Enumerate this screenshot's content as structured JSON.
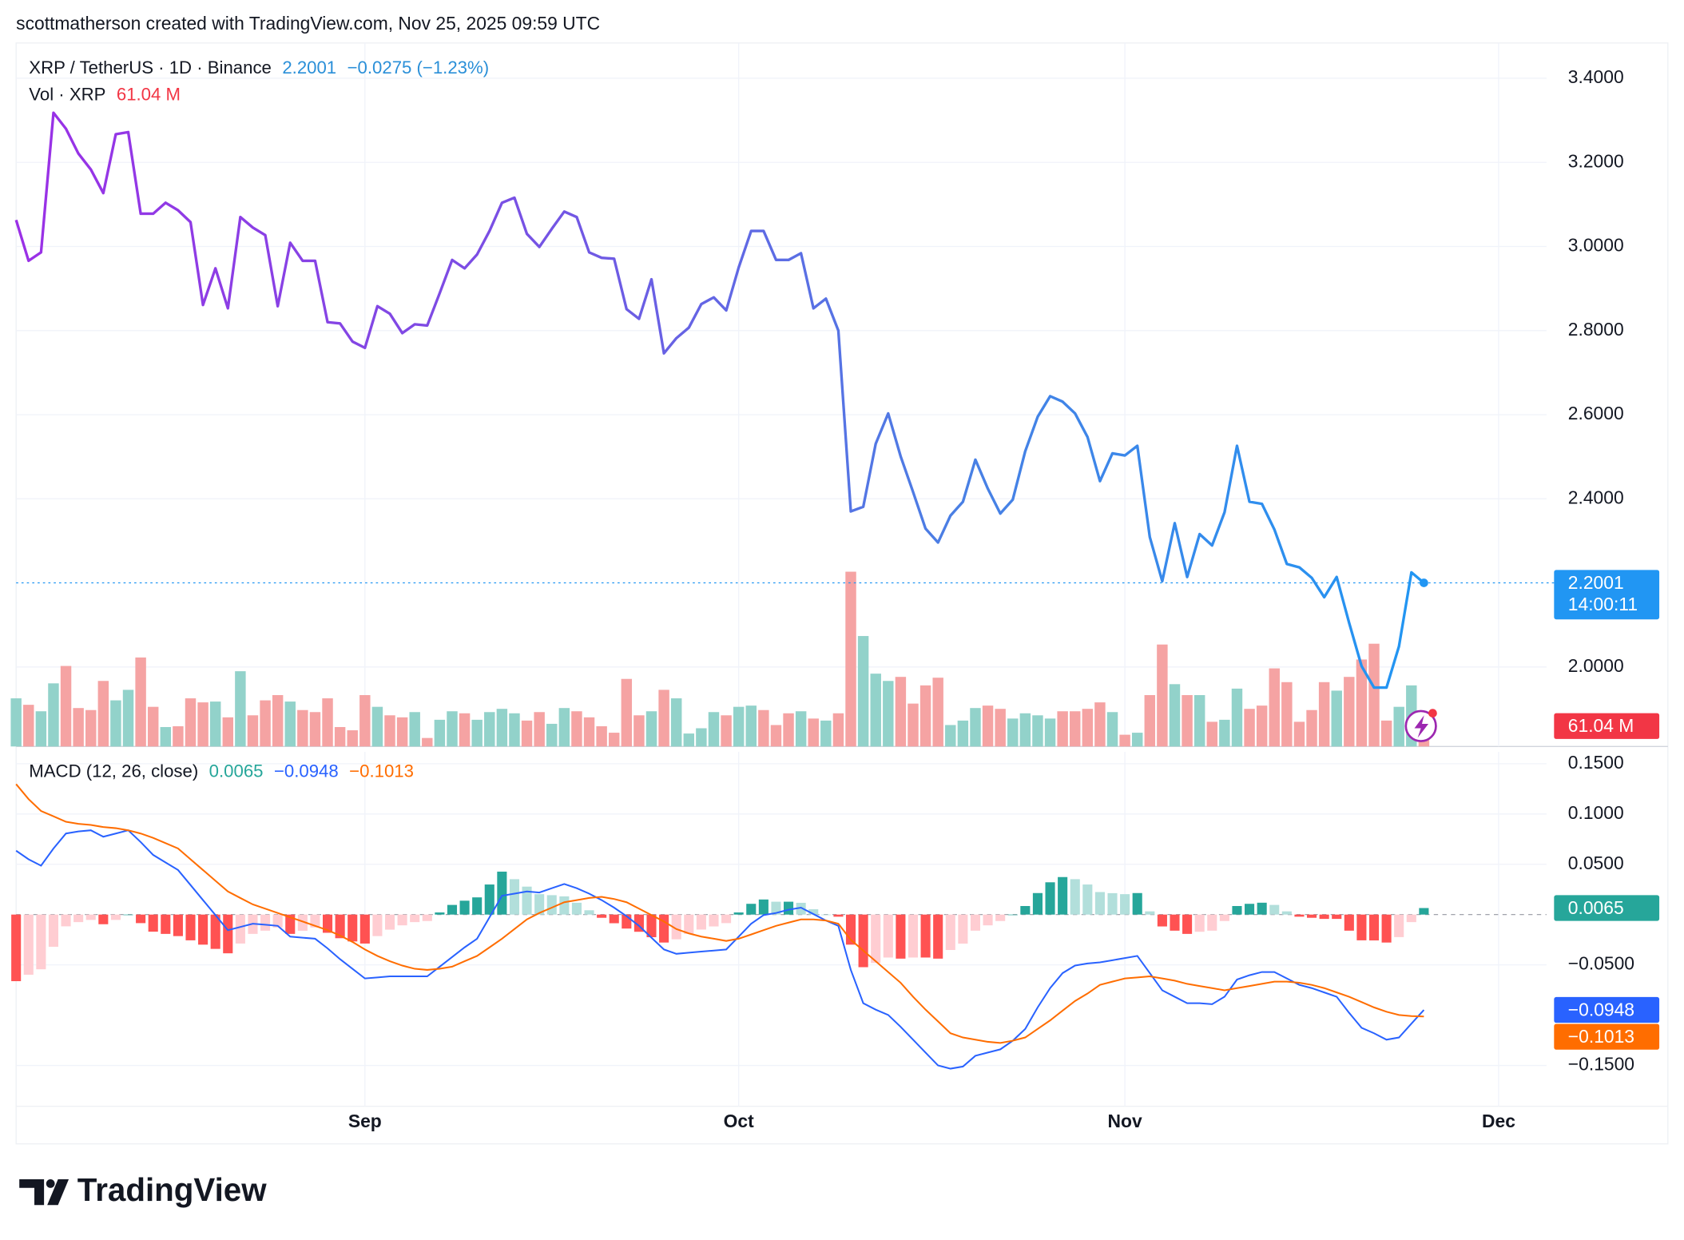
{
  "header": "scottmatherson created with TradingView.com, Nov 25, 2025 09:59 UTC",
  "footer_logo": "TradingView",
  "chart_data": [
    {
      "type": "line",
      "title": "XRP / TetherUS · 1D · Binance",
      "change_label": "−0.0275 (−1.23%)",
      "countdown": "14:00:11",
      "categories": [
        null,
        null,
        null,
        null,
        null,
        null,
        null,
        null,
        null,
        null,
        null,
        null,
        null,
        null,
        null,
        null,
        null,
        null,
        null,
        null,
        null,
        null,
        null,
        null,
        null,
        null,
        null,
        null,
        "Sep",
        null,
        null,
        null,
        null,
        null,
        null,
        null,
        null,
        null,
        null,
        null,
        null,
        null,
        null,
        null,
        null,
        null,
        null,
        null,
        null,
        null,
        null,
        null,
        null,
        null,
        null,
        null,
        null,
        null,
        "Oct",
        null,
        null,
        null,
        null,
        null,
        null,
        null,
        null,
        null,
        null,
        null,
        null,
        null,
        null,
        null,
        null,
        null,
        null,
        null,
        null,
        null,
        null,
        null,
        null,
        null,
        null,
        null,
        null,
        null,
        null,
        "Nov",
        null,
        null,
        null,
        null,
        null,
        null,
        null,
        null,
        null,
        null,
        null,
        null,
        null,
        null,
        null,
        null,
        null,
        null,
        null,
        null,
        null,
        null,
        null,
        null,
        null,
        null,
        null,
        null,
        null,
        "Dec",
        null,
        null,
        null
      ],
      "series": [
        {
          "colors": [
            "#9b30e6",
            "#7b4ee4",
            "#4a7fe4",
            "#2196f3"
          ],
          "values": [
            3.063,
            2.966,
            2.986,
            3.318,
            3.28,
            3.221,
            3.183,
            3.127,
            3.267,
            3.272,
            3.078,
            3.078,
            3.104,
            3.086,
            3.058,
            2.861,
            2.948,
            2.853,
            3.07,
            3.045,
            3.027,
            2.858,
            3.009,
            2.966,
            2.966,
            2.82,
            2.817,
            2.774,
            2.759,
            2.858,
            2.84,
            2.794,
            2.815,
            2.812,
            2.889,
            2.968,
            2.948,
            2.981,
            3.037,
            3.104,
            3.116,
            3.03,
            2.999,
            3.042,
            3.083,
            3.07,
            2.986,
            2.973,
            2.971,
            2.851,
            2.828,
            2.922,
            2.746,
            2.782,
            2.807,
            2.863,
            2.879,
            2.848,
            2.95,
            3.037,
            3.037,
            2.968,
            2.968,
            2.984,
            2.853,
            2.876,
            2.8,
            2.37,
            2.381,
            2.531,
            2.603,
            2.501,
            2.416,
            2.329,
            2.296,
            2.36,
            2.393,
            2.493,
            2.424,
            2.365,
            2.398,
            2.513,
            2.595,
            2.644,
            2.631,
            2.603,
            2.547,
            2.442,
            2.508,
            2.503,
            2.526,
            2.309,
            2.204,
            2.342,
            2.214,
            2.316,
            2.289,
            2.368,
            2.526,
            2.393,
            2.388,
            2.327,
            2.245,
            2.237,
            2.212,
            2.166,
            2.214,
            2.105,
            2.002,
            1.951,
            1.951,
            2.049,
            2.225,
            2.2001,
            null,
            null,
            null,
            null,
            null,
            null,
            null,
            null,
            null
          ]
        }
      ],
      "ylim": [
        1.811,
        3.484
      ],
      "yticks": [
        {
          "value": 3.4,
          "label": "3.4000"
        },
        {
          "value": 3.2,
          "label": "3.2000"
        },
        {
          "value": 3.0,
          "label": "3.0000"
        },
        {
          "value": 2.8,
          "label": "2.8000"
        },
        {
          "value": 2.6,
          "label": "2.6000"
        },
        {
          "value": 2.4,
          "label": "2.4000"
        },
        {
          "value": 2.0,
          "label": "2.0000"
        }
      ],
      "grid": true,
      "last_color": "#2196f3"
    },
    {
      "type": "bar",
      "title": "Vol · XRP",
      "last_value_label": "61.04 M",
      "up_color": "#92d2ca",
      "down_color": "#f5a3a3",
      "label_color": "#f23645",
      "values": [
        119,
        103,
        87,
        156,
        199,
        95,
        90,
        162,
        114,
        140,
        220,
        98,
        48,
        50,
        119,
        109,
        111,
        72,
        186,
        77,
        114,
        127,
        111,
        90,
        85,
        119,
        48,
        40,
        127,
        98,
        77,
        72,
        85,
        21,
        66,
        87,
        82,
        66,
        85,
        93,
        82,
        64,
        85,
        56,
        95,
        87,
        72,
        50,
        34,
        167,
        77,
        87,
        140,
        119,
        32,
        45,
        85,
        77,
        98,
        101,
        90,
        53,
        82,
        87,
        69,
        64,
        82,
        432,
        273,
        180,
        162,
        172,
        106,
        151,
        170,
        53,
        64,
        95,
        101,
        93,
        69,
        82,
        77,
        69,
        87,
        87,
        93,
        109,
        85,
        29,
        34,
        127,
        252,
        154,
        127,
        127,
        61,
        66,
        143,
        93,
        101,
        193,
        159,
        61,
        90,
        159,
        138,
        172,
        215,
        254,
        64,
        98,
        151,
        61.04,
        null,
        null,
        null,
        null,
        null,
        null,
        null,
        null,
        null
      ],
      "ylim": [
        0,
        600
      ]
    },
    {
      "type": "macd",
      "title": "MACD (12, 26, close)",
      "series": [
        {
          "colors": [
            "#26a69a",
            "#b2dfdb",
            "#ff5252",
            "#ffcdd2"
          ],
          "values": [
            -0.0662,
            -0.0598,
            -0.0544,
            -0.032,
            -0.0117,
            -0.0075,
            -0.0053,
            -0.0096,
            -0.0053,
            0,
            -0.0085,
            -0.017,
            -0.0192,
            -0.0214,
            -0.0256,
            -0.0299,
            -0.0341,
            -0.0385,
            -0.0288,
            -0.0192,
            -0.016,
            -0.0128,
            -0.0192,
            -0.0161,
            -0.0128,
            -0.0181,
            -0.0235,
            -0.0267,
            -0.0288,
            -0.0214,
            -0.015,
            -0.0107,
            -0.0075,
            -0.0064,
            0.0021,
            0.0096,
            0.0138,
            0.0171,
            0.0299,
            0.0427,
            0.0352,
            0.0278,
            0.0203,
            0.0193,
            0.0181,
            0.0118,
            0.0043,
            -0.0032,
            -0.0086,
            -0.0139,
            -0.0171,
            -0.0225,
            -0.0278,
            -0.0246,
            -0.0192,
            -0.0149,
            -0.0118,
            -0.0085,
            0.0021,
            0.0107,
            0.015,
            0.0128,
            0.0128,
            0.0117,
            0.0053,
            0,
            -0.0021,
            -0.0299,
            -0.0523,
            -0.0481,
            -0.0427,
            -0.0438,
            -0.0427,
            -0.0427,
            -0.0438,
            -0.0352,
            -0.0289,
            -0.016,
            -0.0107,
            -0.0064,
            0,
            0.0085,
            0.0214,
            0.0321,
            0.0373,
            0.0352,
            0.0299,
            0.0224,
            0.0213,
            0.0203,
            0.0214,
            0.0032,
            -0.0118,
            -0.016,
            -0.0192,
            -0.0171,
            -0.016,
            -0.0064,
            0.0085,
            0.0107,
            0.0118,
            0.0096,
            0.0032,
            -0.0021,
            -0.0032,
            -0.0043,
            -0.0043,
            -0.016,
            -0.0256,
            -0.0257,
            -0.0278,
            -0.0224,
            -0.0075,
            0.0065,
            null,
            null,
            null,
            null,
            null,
            null,
            null,
            null,
            null
          ]
        },
        {
          "color": "#2962ff",
          "last_value_label": "−0.0948",
          "values": [
            0.0635,
            0.055,
            0.0486,
            0.0657,
            0.0806,
            0.0827,
            0.0838,
            0.0774,
            0.0806,
            0.0838,
            0.0721,
            0.0593,
            0.0518,
            0.0443,
            0.0294,
            0.0144,
            -0.0005,
            -0.0155,
            -0.0123,
            -0.0091,
            -0.0101,
            -0.0112,
            -0.0219,
            -0.023,
            -0.024,
            -0.0336,
            -0.0443,
            -0.0539,
            -0.0635,
            -0.0625,
            -0.0614,
            -0.0614,
            -0.0614,
            -0.0614,
            -0.0518,
            -0.0422,
            -0.0326,
            -0.024,
            -0.0027,
            0.0187,
            0.0208,
            0.023,
            0.0219,
            0.0262,
            0.0304,
            0.0262,
            0.0208,
            0.0144,
            0.0069,
            -0.0016,
            -0.0112,
            -0.023,
            -0.0347,
            -0.039,
            -0.0379,
            -0.0368,
            -0.0358,
            -0.0347,
            -0.0219,
            -0.0091,
            -0.0005,
            0.0016,
            0.0048,
            0.0069,
            0.0005,
            -0.0059,
            -0.0112,
            -0.055,
            -0.0881,
            -0.0945,
            -0.0998,
            -0.1116,
            -0.1244,
            -0.1372,
            -0.15,
            -0.1532,
            -0.1511,
            -0.1404,
            -0.1372,
            -0.134,
            -0.1254,
            -0.1137,
            -0.0923,
            -0.0731,
            -0.0582,
            -0.0507,
            -0.0486,
            -0.0475,
            -0.0454,
            -0.0432,
            -0.0411,
            -0.0582,
            -0.0753,
            -0.0817,
            -0.0881,
            -0.0881,
            -0.0891,
            -0.0817,
            -0.0646,
            -0.0603,
            -0.0571,
            -0.0571,
            -0.0635,
            -0.0699,
            -0.0731,
            -0.0774,
            -0.0817,
            -0.0977,
            -0.1126,
            -0.118,
            -0.1244,
            -0.1222,
            -0.1084,
            -0.0948,
            null,
            null,
            null,
            null,
            null,
            null,
            null,
            null,
            null
          ]
        },
        {
          "color": "#ff6d00",
          "last_value_label": "−0.1013",
          "values": [
            0.1297,
            0.1148,
            0.103,
            0.0977,
            0.0923,
            0.0902,
            0.0891,
            0.087,
            0.0859,
            0.0838,
            0.0806,
            0.0763,
            0.071,
            0.0657,
            0.055,
            0.0443,
            0.0336,
            0.023,
            0.0165,
            0.0101,
            0.0059,
            0.0016,
            -0.0027,
            -0.0069,
            -0.0112,
            -0.0155,
            -0.0208,
            -0.0272,
            -0.0347,
            -0.0411,
            -0.0464,
            -0.0507,
            -0.0539,
            -0.055,
            -0.0539,
            -0.0518,
            -0.0464,
            -0.0411,
            -0.0326,
            -0.024,
            -0.0144,
            -0.0048,
            0.0016,
            0.0069,
            0.0123,
            0.0144,
            0.0165,
            0.0176,
            0.0155,
            0.0123,
            0.0059,
            -0.0005,
            -0.0069,
            -0.0144,
            -0.0187,
            -0.0219,
            -0.024,
            -0.0262,
            -0.024,
            -0.0198,
            -0.0155,
            -0.0112,
            -0.008,
            -0.0048,
            -0.0048,
            -0.0059,
            -0.0091,
            -0.0251,
            -0.0358,
            -0.0464,
            -0.0571,
            -0.0678,
            -0.0817,
            -0.0945,
            -0.1062,
            -0.118,
            -0.1222,
            -0.1244,
            -0.1265,
            -0.1276,
            -0.1254,
            -0.1222,
            -0.1137,
            -0.1052,
            -0.0955,
            -0.0859,
            -0.0785,
            -0.0699,
            -0.0667,
            -0.0635,
            -0.0625,
            -0.0614,
            -0.0635,
            -0.0657,
            -0.0689,
            -0.071,
            -0.0731,
            -0.0753,
            -0.0731,
            -0.071,
            -0.0689,
            -0.0667,
            -0.0667,
            -0.0678,
            -0.0699,
            -0.0731,
            -0.0774,
            -0.0817,
            -0.087,
            -0.0923,
            -0.0966,
            -0.0998,
            -0.1009,
            -0.1013,
            null,
            null,
            null,
            null,
            null,
            null,
            null,
            null,
            null
          ]
        }
      ],
      "ylim": [
        -0.1906,
        0.1618
      ],
      "yticks": [
        {
          "value": 0.15,
          "label": "0.1500"
        },
        {
          "value": 0.1,
          "label": "0.1000"
        },
        {
          "value": 0.05,
          "label": "0.0500"
        },
        {
          "value": -0.05,
          "label": "−0.0500"
        },
        {
          "value": -0.15,
          "label": "−0.1500"
        }
      ],
      "grid": true
    }
  ]
}
